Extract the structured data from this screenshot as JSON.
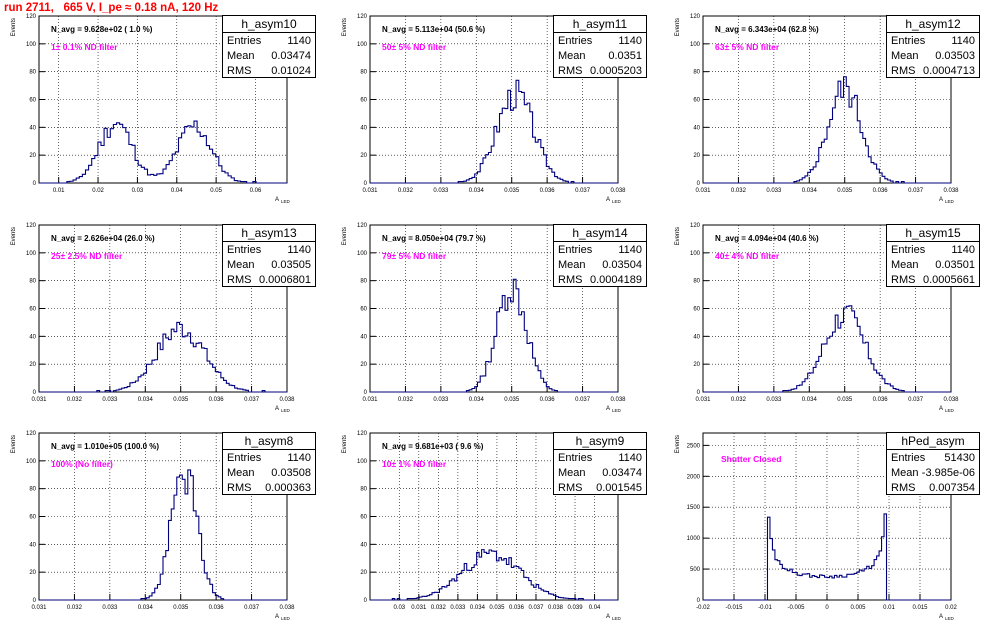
{
  "run_title": "run 2711,   665 V, I_pe ≈ 0.18 nA, 120 Hz",
  "ylabel": "Events",
  "xlabel_main": "A",
  "xlabel_sub": "LED",
  "colors": {
    "histogram": "#00007f",
    "run_title": "#ff0000",
    "filter": "#ff00ff",
    "grid": "#000000"
  },
  "chart_data": [
    {
      "type": "histogram",
      "name": "h_asym10",
      "navg": "N_avg = 9.628e+02 ( 1.0 %)",
      "filter": "1± 0.1% ND filter",
      "stats": {
        "entries": "1140",
        "mean": "0.03474",
        "rms": "0.01024"
      },
      "xlim": [
        0.005,
        0.068
      ],
      "ylim": [
        0,
        120
      ],
      "xticks": [
        "0.01",
        "0.02",
        "0.03",
        "0.04",
        "0.05",
        "0.06"
      ],
      "yticks": [
        "0",
        "20",
        "40",
        "60",
        "80",
        "100",
        "120"
      ],
      "peaks": [
        [
          0.0245,
          43,
          0.0042
        ],
        [
          0.0445,
          41,
          0.0043
        ]
      ],
      "nbins": 80,
      "seed": 11
    },
    {
      "type": "histogram",
      "name": "h_asym11",
      "navg": "N_avg = 5.113e+04 (50.6 %)",
      "filter": "50± 5% ND filter",
      "stats": {
        "entries": "1140",
        "mean": "0.0351",
        "rms": "0.0005203"
      },
      "xlim": [
        0.031,
        0.038
      ],
      "ylim": [
        0,
        120
      ],
      "xticks": [
        "0.031",
        "0.032",
        "0.033",
        "0.034",
        "0.035",
        "0.036",
        "0.037",
        "0.038"
      ],
      "yticks": [
        "0",
        "20",
        "40",
        "60",
        "80",
        "100",
        "120"
      ],
      "peaks": [
        [
          0.0351,
          64,
          0.00052
        ]
      ],
      "nbins": 90,
      "seed": 3
    },
    {
      "type": "histogram",
      "name": "h_asym12",
      "navg": "N_avg = 6.343e+04 (62.8 %)",
      "filter": "63± 5% ND filter",
      "stats": {
        "entries": "1140",
        "mean": "0.03503",
        "rms": "0.0004713"
      },
      "xlim": [
        0.031,
        0.038
      ],
      "ylim": [
        0,
        120
      ],
      "xticks": [
        "0.031",
        "0.032",
        "0.033",
        "0.034",
        "0.035",
        "0.036",
        "0.037",
        "0.038"
      ],
      "yticks": [
        "0",
        "20",
        "40",
        "60",
        "80",
        "100",
        "120"
      ],
      "peaks": [
        [
          0.035,
          68,
          0.00047
        ]
      ],
      "nbins": 90,
      "seed": 5
    },
    {
      "type": "histogram",
      "name": "h_asym13",
      "navg": "N_avg = 2.626e+04 (26.0 %)",
      "filter": "25± 2.5% ND filter",
      "stats": {
        "entries": "1140",
        "mean": "0.03505",
        "rms": "0.0006801"
      },
      "xlim": [
        0.031,
        0.038
      ],
      "ylim": [
        0,
        120
      ],
      "xticks": [
        "0.031",
        "0.032",
        "0.033",
        "0.034",
        "0.035",
        "0.036",
        "0.037",
        "0.038"
      ],
      "yticks": [
        "0",
        "20",
        "40",
        "60",
        "80",
        "100",
        "120"
      ],
      "peaks": [
        [
          0.035,
          46,
          0.00068
        ]
      ],
      "nbins": 90,
      "seed": 7
    },
    {
      "type": "histogram",
      "name": "h_asym14",
      "navg": "N_avg = 8.050e+04 (79.7 %)",
      "filter": "79± 5% ND filter",
      "stats": {
        "entries": "1140",
        "mean": "0.03504",
        "rms": "0.0004189"
      },
      "xlim": [
        0.031,
        0.038
      ],
      "ylim": [
        0,
        120
      ],
      "xticks": [
        "0.031",
        "0.032",
        "0.033",
        "0.034",
        "0.035",
        "0.036",
        "0.037",
        "0.038"
      ],
      "yticks": [
        "0",
        "20",
        "40",
        "60",
        "80",
        "100",
        "120"
      ],
      "peaks": [
        [
          0.035,
          76,
          0.00042
        ]
      ],
      "nbins": 90,
      "seed": 13
    },
    {
      "type": "histogram",
      "name": "h_asym15",
      "navg": "N_avg = 4.094e+04 (40.6 %)",
      "filter": "40± 4% ND filter",
      "stats": {
        "entries": "1140",
        "mean": "0.03501",
        "rms": "0.0005661"
      },
      "xlim": [
        0.031,
        0.038
      ],
      "ylim": [
        0,
        120
      ],
      "xticks": [
        "0.031",
        "0.032",
        "0.033",
        "0.034",
        "0.035",
        "0.036",
        "0.037",
        "0.038"
      ],
      "yticks": [
        "0",
        "20",
        "40",
        "60",
        "80",
        "100",
        "120"
      ],
      "peaks": [
        [
          0.035,
          56,
          0.00057
        ]
      ],
      "nbins": 90,
      "seed": 17
    },
    {
      "type": "histogram",
      "name": "h_asym8",
      "navg": "N_avg = 1.010e+05 (100.0 %)",
      "filter": "100% (No filter)",
      "stats": {
        "entries": "1140",
        "mean": "0.03508",
        "rms": "0.000363"
      },
      "xlim": [
        0.031,
        0.038
      ],
      "ylim": [
        0,
        120
      ],
      "xticks": [
        "0.031",
        "0.032",
        "0.033",
        "0.034",
        "0.035",
        "0.036",
        "0.037",
        "0.038"
      ],
      "yticks": [
        "0",
        "20",
        "40",
        "60",
        "80",
        "100",
        "120"
      ],
      "peaks": [
        [
          0.0351,
          92,
          0.00036
        ]
      ],
      "nbins": 90,
      "seed": 19
    },
    {
      "type": "histogram",
      "name": "h_asym9",
      "navg": "N_avg = 9.681e+03 ( 9.6 %)",
      "filter": "10± 1% ND filter",
      "stats": {
        "entries": "1140",
        "mean": "0.03474",
        "rms": "0.001545"
      },
      "xlim": [
        0.0285,
        0.0412
      ],
      "ylim": [
        0,
        120
      ],
      "xticks": [
        "0.03",
        "0.031",
        "0.032",
        "0.033",
        "0.034",
        "0.035",
        "0.036",
        "0.037",
        "0.038",
        "0.039",
        "0.04"
      ],
      "yticks": [
        "0",
        "20",
        "40",
        "60",
        "80",
        "100",
        "120"
      ],
      "peaks": [
        [
          0.0347,
          33,
          0.0015
        ]
      ],
      "nbins": 100,
      "seed": 23
    },
    {
      "type": "histogram",
      "name": "hPed_asym",
      "navg": "",
      "filter": "Shutter Closed",
      "stats": {
        "entries": "51430",
        "mean": "-3.985e-06",
        "rms": "0.007354"
      },
      "xlim": [
        -0.02,
        0.02
      ],
      "ylim": [
        0,
        2700
      ],
      "xticks": [
        "-0.02",
        "-0.015",
        "-0.01",
        "-0.005",
        "0",
        "0.005",
        "0.01",
        "0.015",
        "0.02"
      ],
      "yticks": [
        "0",
        "500",
        "1000",
        "1500",
        "2000",
        "2500"
      ],
      "shape": "arcsine",
      "nbins": 100,
      "seed": 29
    }
  ]
}
